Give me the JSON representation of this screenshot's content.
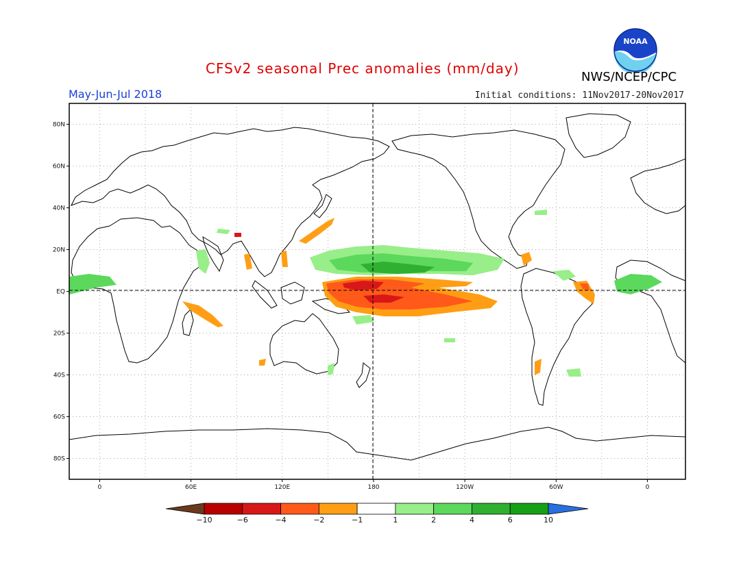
{
  "header": {
    "title": "CFSv2 seasonal Prec anomalies (mm/day)",
    "period": "May-Jun-Jul 2018",
    "initial_conditions": "Initial conditions: 11Nov2017-20Nov2017",
    "agency": "NWS/NCEP/CPC",
    "logo_text": "NOAA"
  },
  "map": {
    "lat_labels": [
      "80N",
      "60N",
      "40N",
      "20N",
      "EQ",
      "20S",
      "40S",
      "60S",
      "80S"
    ],
    "lat_values": [
      80,
      60,
      40,
      20,
      0,
      -20,
      -40,
      -60,
      -80
    ],
    "lon_labels": [
      "0",
      "60E",
      "120E",
      "180",
      "120W",
      "60W",
      "0"
    ],
    "lon_values": [
      0,
      60,
      120,
      180,
      240,
      300,
      360
    ],
    "lon_range": [
      -20,
      385
    ],
    "lat_range": [
      -90,
      90
    ],
    "grid": "dotted",
    "reference_lines": [
      "equator",
      "dateline"
    ]
  },
  "colorbar": {
    "labels": [
      "-10",
      "-6",
      "-4",
      "-2",
      "-1",
      "1",
      "2",
      "4",
      "6",
      "10"
    ],
    "colors": [
      "#6b3a1e",
      "#b80000",
      "#d81818",
      "#ff5a1a",
      "#ff9e14",
      "#ffffff",
      "#98ee88",
      "#5cd85c",
      "#30b030",
      "#16a016",
      "#2a6fe0"
    ]
  },
  "colors": {
    "title": "#e00000",
    "period": "#1a3fd8",
    "strong_wet": "#30b030",
    "wet": "#5cd85c",
    "light_wet": "#98ee88",
    "light_dry": "#ff9e14",
    "dry": "#ff5a1a",
    "strong_dry": "#d81818",
    "very_dry": "#b80000"
  }
}
